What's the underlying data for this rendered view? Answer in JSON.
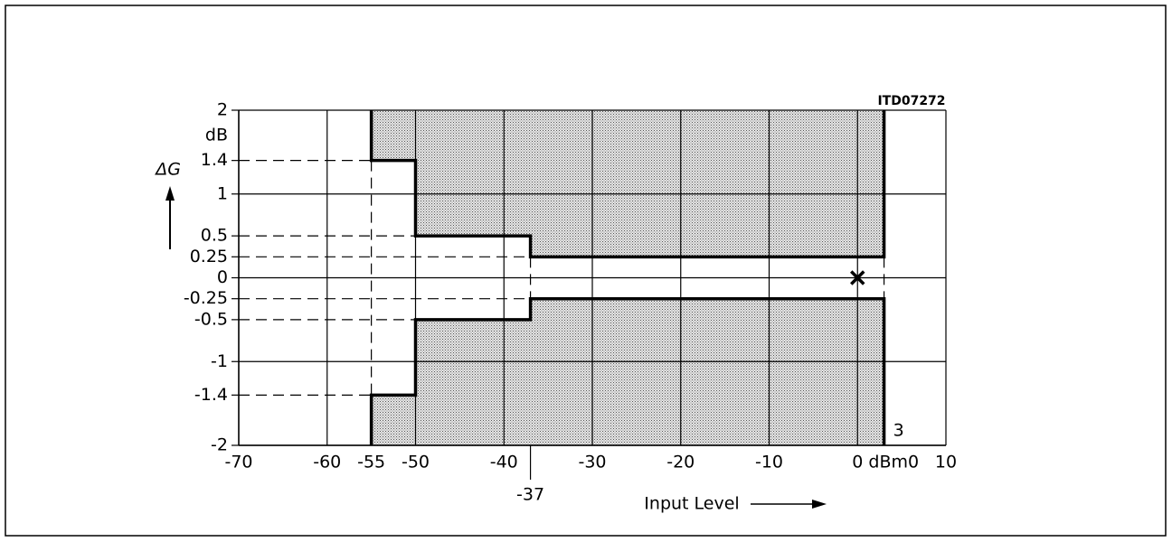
{
  "chart_data": {
    "type": "mask",
    "id_label": "ITD07272",
    "ylabel": "ΔG",
    "yunit": "dB",
    "xlabel": "Input Level",
    "xlim": [
      -70,
      10
    ],
    "ylim": [
      -2,
      2
    ],
    "xticks": [
      -70,
      -60,
      -55,
      -50,
      -40,
      -37,
      -30,
      -20,
      -10,
      {
        "value": 0,
        "label": "0 dBm0"
      },
      10
    ],
    "yticks": [
      2,
      1.4,
      1,
      0.5,
      0.25,
      0,
      -0.25,
      -0.5,
      -1,
      -1.4,
      -2
    ],
    "series": [
      {
        "color": "#000000",
        "fill_to": 2,
        "x": [
          -55,
          -55,
          -50,
          -50,
          -37,
          -37,
          3,
          3
        ],
        "y": [
          2,
          1.4,
          1.4,
          0.5,
          0.5,
          0.25,
          0.25,
          2
        ]
      },
      {
        "color": "#000000",
        "fill_to": -2,
        "x": [
          -55,
          -55,
          -50,
          -50,
          -37,
          -37,
          3,
          3
        ],
        "y": [
          -2,
          -1.4,
          -1.4,
          -0.5,
          -0.5,
          -0.25,
          -0.25,
          -2
        ]
      }
    ],
    "points": [
      {
        "x": 0,
        "y": 0
      }
    ],
    "annotations": [
      {
        "text": "3",
        "x": 3,
        "y": -2
      }
    ]
  }
}
